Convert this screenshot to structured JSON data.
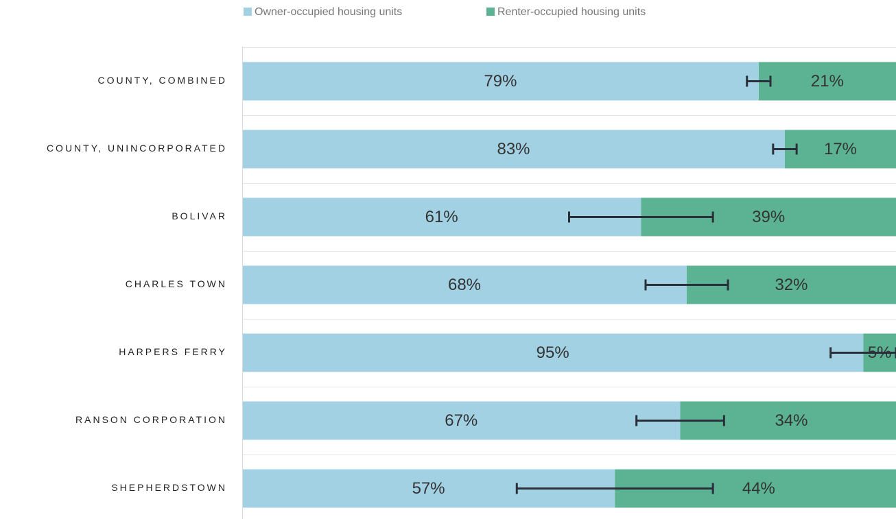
{
  "chart_data": {
    "type": "stacked-barh",
    "categories": [
      "COUNTY, COMBINED",
      "COUNTY, UNINCORPORATED",
      "BOLIVAR",
      "CHARLES TOWN",
      "HARPERS FERRY",
      "RANSON CORPORATION",
      "SHEPHERDSTOWN"
    ],
    "series": [
      {
        "name": "Owner-occupied housing units",
        "color": "#a3d1e4",
        "values": [
          79,
          83,
          61,
          68,
          95,
          67,
          57
        ],
        "value_labels": [
          "79%",
          "83%",
          "61%",
          "68%",
          "95%",
          "67%",
          "57%"
        ],
        "errors": [
          1.8,
          1.8,
          11,
          6.3,
          5,
          6.7,
          15
        ]
      },
      {
        "name": "Renter-occupied housing units",
        "color": "#5bb394",
        "values": [
          21,
          17,
          39,
          32,
          5,
          34,
          44
        ],
        "value_labels": [
          "21%",
          "17%",
          "39%",
          "32%",
          "5%",
          "34%",
          "44%"
        ]
      }
    ],
    "xlim": [
      0,
      100
    ],
    "error_color": "#2b2f3a",
    "legend": "top"
  }
}
